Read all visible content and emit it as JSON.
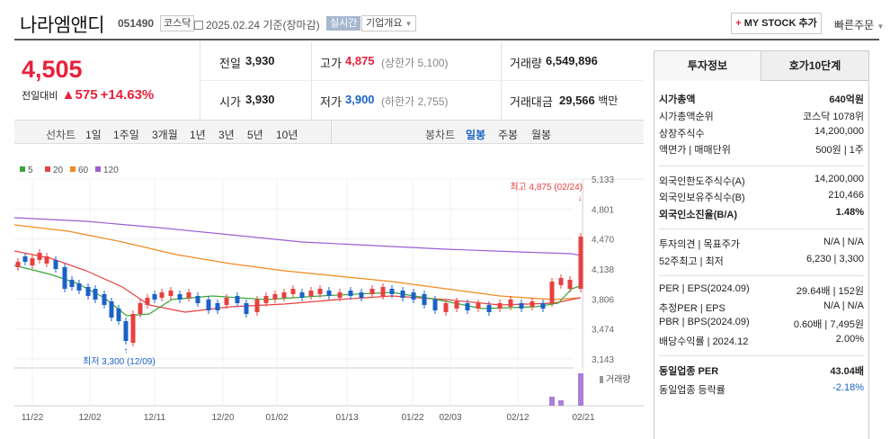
{
  "header": {
    "name": "나라엠앤디",
    "code": "051490",
    "market": "코스닥",
    "date": "2025.02.24",
    "basis": "기준(장마감)",
    "realtime": "실시간",
    "company_info": "기업개요",
    "my_stock": "MY STOCK 추가",
    "quick_order": "빠른주문"
  },
  "quote": {
    "price": "4,505",
    "diff_label": "전일대비",
    "diff": "575",
    "rate": "+14.63%",
    "prev_label": "전일",
    "prev": "3,930",
    "high_label": "고가",
    "high": "4,875",
    "upper_limit": "(상한가 5,100)",
    "volume_label": "거래량",
    "volume": "6,549,896",
    "open_label": "시가",
    "open": "3,930",
    "low_label": "저가",
    "low": "3,900",
    "lower_limit": "(하한가 2,755)",
    "value_label": "거래대금",
    "value": "29,566",
    "value_unit": "백만"
  },
  "tabs": {
    "line_label": "선차트",
    "line": [
      "1일",
      "1주일",
      "3개월",
      "1년",
      "3년",
      "5년",
      "10년"
    ],
    "candle_label": "봉차트",
    "candle": [
      "일봉",
      "주봉",
      "월봉"
    ]
  },
  "legend": [
    {
      "label": "5",
      "color": "#3aa53a"
    },
    {
      "label": "20",
      "color": "#e84040"
    },
    {
      "label": "60",
      "color": "#f08a20"
    },
    {
      "label": "120",
      "color": "#9b5fd0"
    }
  ],
  "chart": {
    "yticks": [
      "5,133",
      "4,801",
      "4,470",
      "4,138",
      "3,806",
      "3,474",
      "3,143"
    ],
    "xticks": [
      "11/22",
      "12/02",
      "12/11",
      "12/20",
      "01/02",
      "01/13",
      "01/22",
      "02/03",
      "02/12",
      "02/21"
    ],
    "max_note": "최고 4,875 (02/24)",
    "min_note": "최저 3,300 (12/09)",
    "volume_label": "거래량"
  },
  "panel": {
    "tab1": "투자정보",
    "tab2": "호가10단계",
    "rows": [
      {
        "k": "시가총액",
        "v": "640억원",
        "bold": true
      },
      {
        "k": "시가총액순위",
        "v": "코스닥 1078위"
      },
      {
        "k": "상장주식수",
        "v": "14,200,000"
      },
      {
        "k": "액면가 | 매매단위",
        "v": "500원 | 1주"
      },
      {
        "k": "외국인한도주식수(A)",
        "v": "14,200,000"
      },
      {
        "k": "외국인보유주식수(B)",
        "v": "210,466"
      },
      {
        "k": "외국인소진율(B/A)",
        "v": "1.48%",
        "bold": true
      },
      {
        "k": "투자의견 | 목표주가",
        "v": "N/A | N/A"
      },
      {
        "k": "52주최고 | 최저",
        "v": "6,230 | 3,300"
      },
      {
        "k": "PER | EPS(2024.09)",
        "v": "29.64배 | 152원"
      },
      {
        "k": "추정PER | EPS",
        "v": "N/A | N/A"
      },
      {
        "k": "PBR | BPS(2024.09)",
        "v": "0.60배 | 7,495원"
      },
      {
        "k": "배당수익률 | 2024.12",
        "v": "2.00%"
      },
      {
        "k": "동일업종 PER",
        "v": "43.04배",
        "bold": true
      },
      {
        "k": "동일업종 등락률",
        "v": "-2.18%",
        "blue": true
      }
    ]
  }
}
